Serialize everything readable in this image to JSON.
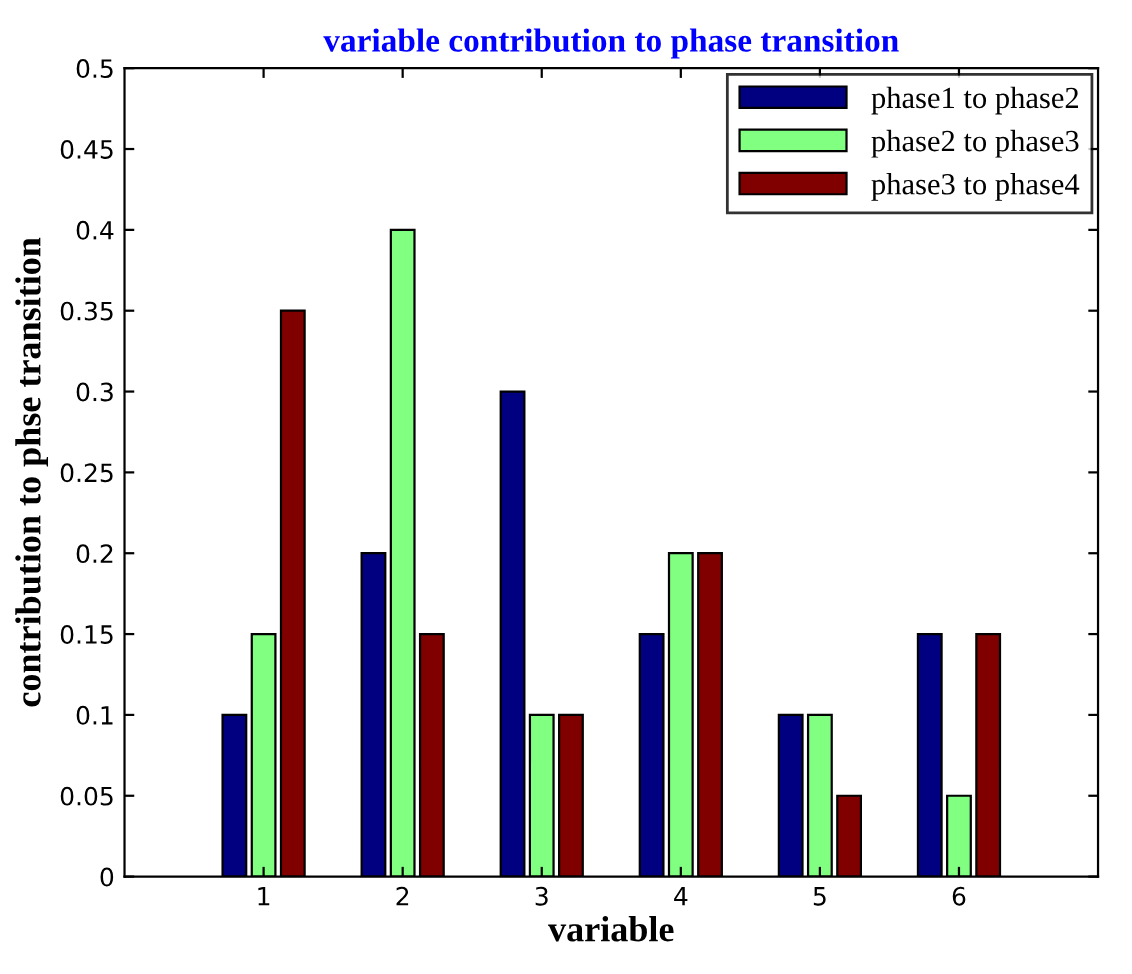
{
  "chart_data": {
    "type": "bar",
    "title": "variable contribution to phase transition",
    "xlabel": "variable",
    "ylabel": "contribution to phse transition",
    "categories": [
      "1",
      "2",
      "3",
      "4",
      "5",
      "6"
    ],
    "series": [
      {
        "name": "phase1 to phase2",
        "color": "#000080",
        "values": [
          0.1,
          0.2,
          0.3,
          0.15,
          0.1,
          0.15
        ]
      },
      {
        "name": "phase2 to phase3",
        "color": "#80ff80",
        "values": [
          0.15,
          0.4,
          0.1,
          0.2,
          0.1,
          0.05
        ]
      },
      {
        "name": "phase3 to phase4",
        "color": "#800000",
        "values": [
          0.35,
          0.15,
          0.1,
          0.2,
          0.05,
          0.15
        ]
      }
    ],
    "ylim": [
      0,
      0.5
    ],
    "yticks": [
      0,
      0.05,
      0.1,
      0.15,
      0.2,
      0.25,
      0.3,
      0.35,
      0.4,
      0.45,
      0.5
    ],
    "legend": "top right",
    "grid": false
  }
}
